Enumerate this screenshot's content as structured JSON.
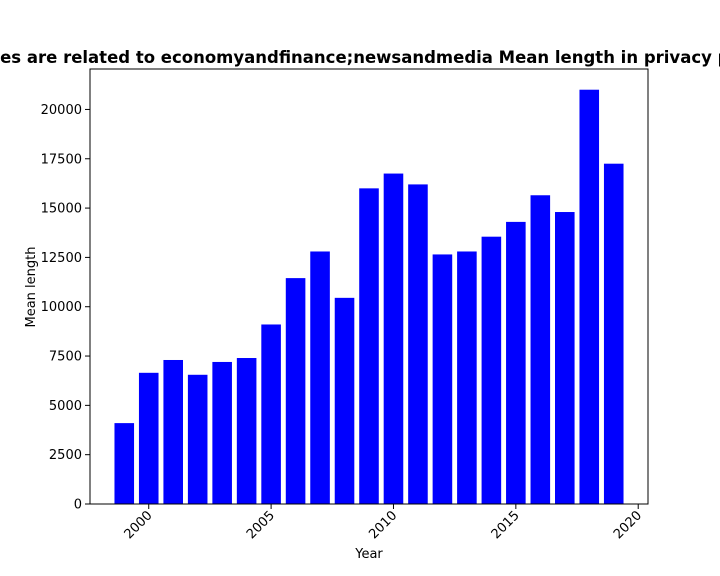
{
  "chart_data": {
    "type": "bar",
    "title": "Countries are related to economyandfinance;newsandmedia Mean length in privacy policies",
    "xlabel": "Year",
    "ylabel": "Mean length",
    "bar_color": "#0000ff",
    "x": [
      1999,
      2000,
      2001,
      2002,
      2003,
      2004,
      2005,
      2006,
      2007,
      2008,
      2009,
      2010,
      2011,
      2012,
      2013,
      2014,
      2015,
      2016,
      2017,
      2018,
      2019
    ],
    "values": [
      4100,
      6650,
      7300,
      6550,
      7200,
      7400,
      9100,
      11450,
      12800,
      10450,
      16000,
      16750,
      16200,
      12650,
      12800,
      13550,
      14300,
      15650,
      14800,
      21000,
      17250
    ],
    "xlim": [
      1997.6,
      2020.4
    ],
    "ylim": [
      0,
      22050
    ],
    "x_ticks": [
      2000,
      2005,
      2010,
      2015,
      2020
    ],
    "y_ticks": [
      0,
      2500,
      5000,
      7500,
      10000,
      12500,
      15000,
      17500,
      20000
    ],
    "grid": false
  }
}
